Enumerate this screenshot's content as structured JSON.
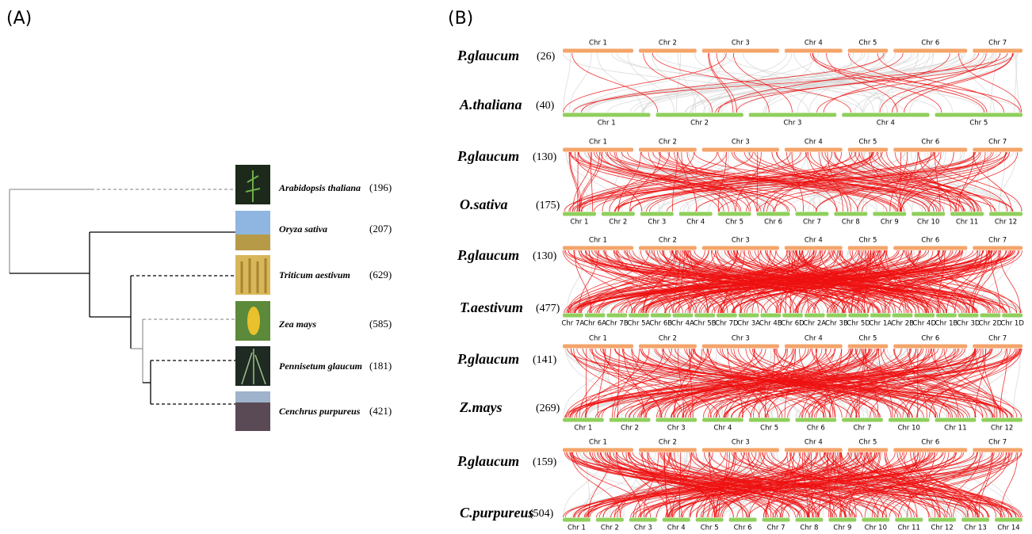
{
  "panel_a": {
    "label": "(A)",
    "species": [
      {
        "name": "Arabidopsis thaliana",
        "count": "(196)"
      },
      {
        "name": "Oryza sativa",
        "count": "(207)"
      },
      {
        "name": "Triticum aestivum",
        "count": "(629)"
      },
      {
        "name": "Zea mays",
        "count": "(585)"
      },
      {
        "name": "Pennisetum glaucum",
        "count": "(181)"
      },
      {
        "name": "Cenchrus purpureus",
        "count": "(421)"
      }
    ]
  },
  "panel_b": {
    "label": "(B)",
    "comparisons": [
      {
        "top": {
          "species": "P.glaucum",
          "count": "(26)",
          "chromosomes": [
            "Chr 1",
            "Chr 2",
            "Chr 3",
            "Chr 4",
            "Chr 5",
            "Chr 6",
            "Chr 7"
          ]
        },
        "bottom": {
          "species": "A.thaliana",
          "count": "(40)",
          "chromosomes": [
            "Chr 1",
            "Chr 2",
            "Chr 3",
            "Chr 4",
            "Chr 5"
          ]
        }
      },
      {
        "top": {
          "species": "P.glaucum",
          "count": "(130)",
          "chromosomes": [
            "Chr 1",
            "Chr 2",
            "Chr 3",
            "Chr 4",
            "Chr 5",
            "Chr 6",
            "Chr 7"
          ]
        },
        "bottom": {
          "species": "O.sativa",
          "count": "(175)",
          "chromosomes": [
            "Chr 1",
            "Chr 2",
            "Chr 3",
            "Chr 4",
            "Chr 5",
            "Chr 6",
            "Chr 7",
            "Chr 8",
            "Chr 9",
            "Chr 10",
            "Chr 11",
            "Chr 12"
          ]
        }
      },
      {
        "top": {
          "species": "P.glaucum",
          "count": "(130)",
          "chromosomes": [
            "Chr 1",
            "Chr 2",
            "Chr 3",
            "Chr 4",
            "Chr 5",
            "Chr 6",
            "Chr 7"
          ]
        },
        "bottom": {
          "species": "T.aestivum",
          "count": "(477)",
          "chromosomes": [
            "Chr 7A",
            "Chr 6A",
            "Chr 7B",
            "Chr 5A",
            "Chr 6B",
            "Chr 4A",
            "Chr 5B",
            "Chr 7D",
            "Chr 3A",
            "Chr 4B",
            "Chr 6D",
            "Chr 2A",
            "Chr 3B",
            "Chr 5D",
            "Chr 1A",
            "Chr 2B",
            "Chr 4D",
            "Chr 1B",
            "Chr 3D",
            "Chr 2D",
            "Chr 1D"
          ]
        }
      },
      {
        "top": {
          "species": "P.glaucum",
          "count": "(141)",
          "chromosomes": [
            "Chr 1",
            "Chr 2",
            "Chr 3",
            "Chr 4",
            "Chr 5",
            "Chr 6",
            "Chr 7"
          ]
        },
        "bottom": {
          "species": "Z.mays",
          "count": "(269)",
          "chromosomes": [
            "Chr 1",
            "Chr 2",
            "Chr 3",
            "Chr 4",
            "Chr 5",
            "Chr 6",
            "Chr 7",
            "Chr 10",
            "Chr 11",
            "Chr 12"
          ]
        }
      },
      {
        "top": {
          "species": "P.glaucum",
          "count": "(159)",
          "chromosomes": [
            "Chr 1",
            "Chr 2",
            "Chr 3",
            "Chr 4",
            "Chr 5",
            "Chr 6",
            "Chr 7"
          ]
        },
        "bottom": {
          "species": "C.purpureus",
          "count": "(504)",
          "chromosomes": [
            "Chr 1",
            "Chr 2",
            "Chr 3",
            "Chr 4",
            "Chr 5",
            "Chr 6",
            "Chr 7",
            "Chr 8",
            "Chr 9",
            "Chr 10",
            "Chr 11",
            "Chr 12",
            "Chr 13",
            "Chr 14"
          ]
        }
      }
    ]
  }
}
